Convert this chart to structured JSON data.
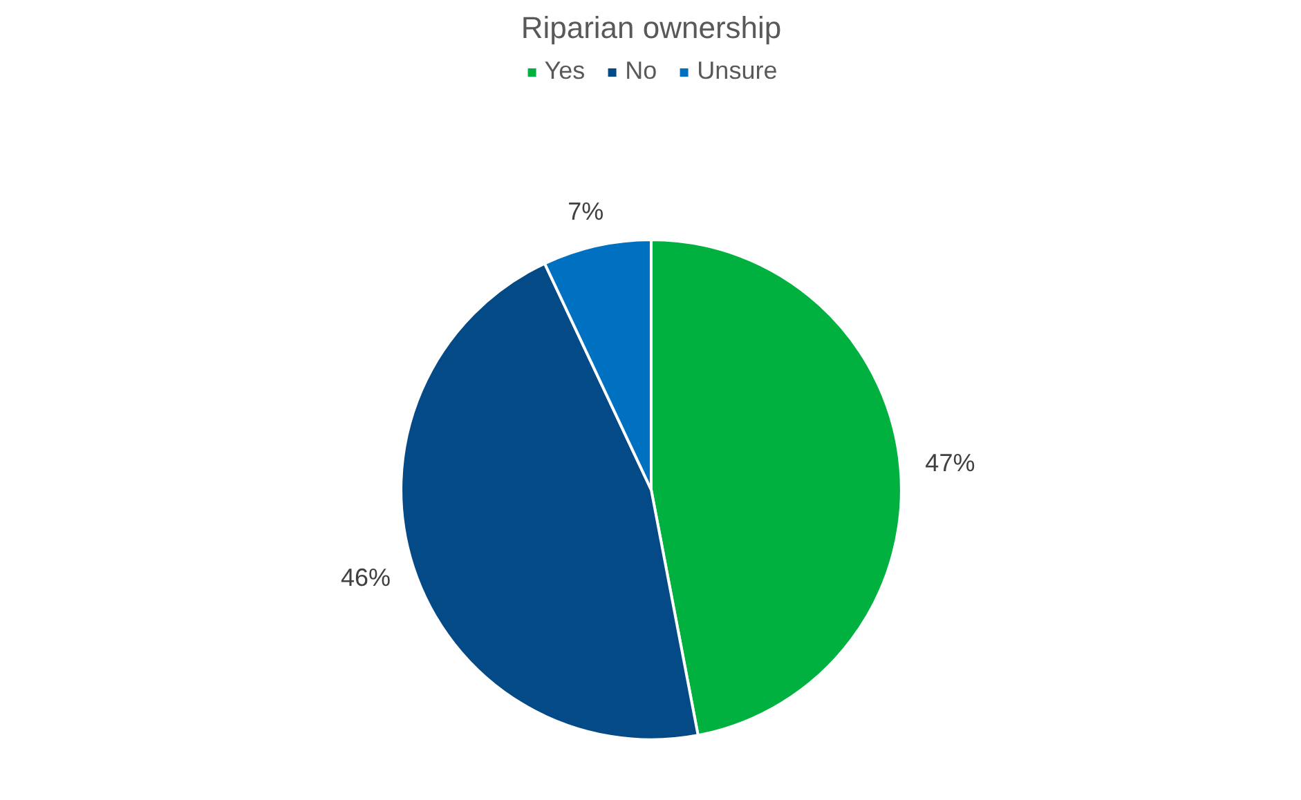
{
  "chart_data": {
    "type": "pie",
    "title": "Riparian ownership",
    "categories": [
      "Yes",
      "No",
      "Unsure"
    ],
    "values": [
      47,
      46,
      7
    ],
    "colors": [
      "#00b140",
      "#044a87",
      "#0070c0"
    ],
    "data_labels": true,
    "value_labels": [
      "47%",
      "46%",
      "7%"
    ],
    "legend": "top"
  }
}
